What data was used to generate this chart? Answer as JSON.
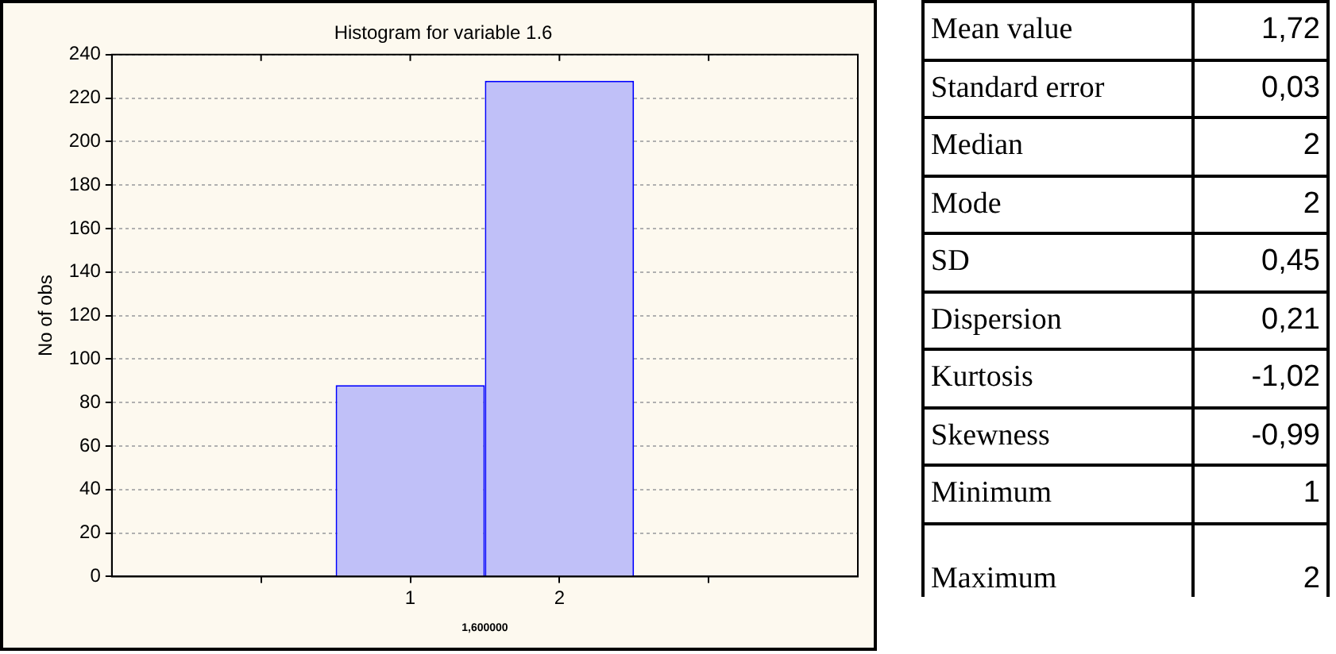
{
  "chart_data": [
    {
      "type": "histogram",
      "title": "Histogram for variable 1.6",
      "xlabel": "1,600000",
      "ylabel": "No of obs",
      "bins": [
        0.5,
        1.5,
        2.5
      ],
      "values": [
        88,
        228
      ],
      "color": "#c0c0f8",
      "xlim": [
        -1,
        4
      ],
      "xticks": [
        {
          "value": 0,
          "label": null
        },
        1,
        2,
        {
          "value": 3,
          "label": null
        }
      ],
      "ylim": [
        0,
        240
      ],
      "yticks": [
        0,
        20,
        40,
        60,
        80,
        100,
        120,
        140,
        160,
        180,
        200,
        220,
        240
      ],
      "grid": "y",
      "legend": false
    },
    {
      "type": "other",
      "annotations": [
        "Mean value",
        "1,72",
        "Standard error",
        "0,03",
        "Median",
        "2",
        "Mode",
        "2",
        "SD",
        "0,45",
        "Dispersion",
        "0,21",
        "Kurtosis",
        "-1,02",
        "Skewness",
        "-0,99",
        "Minimum",
        "1",
        "Maximum",
        "2"
      ]
    }
  ]
}
